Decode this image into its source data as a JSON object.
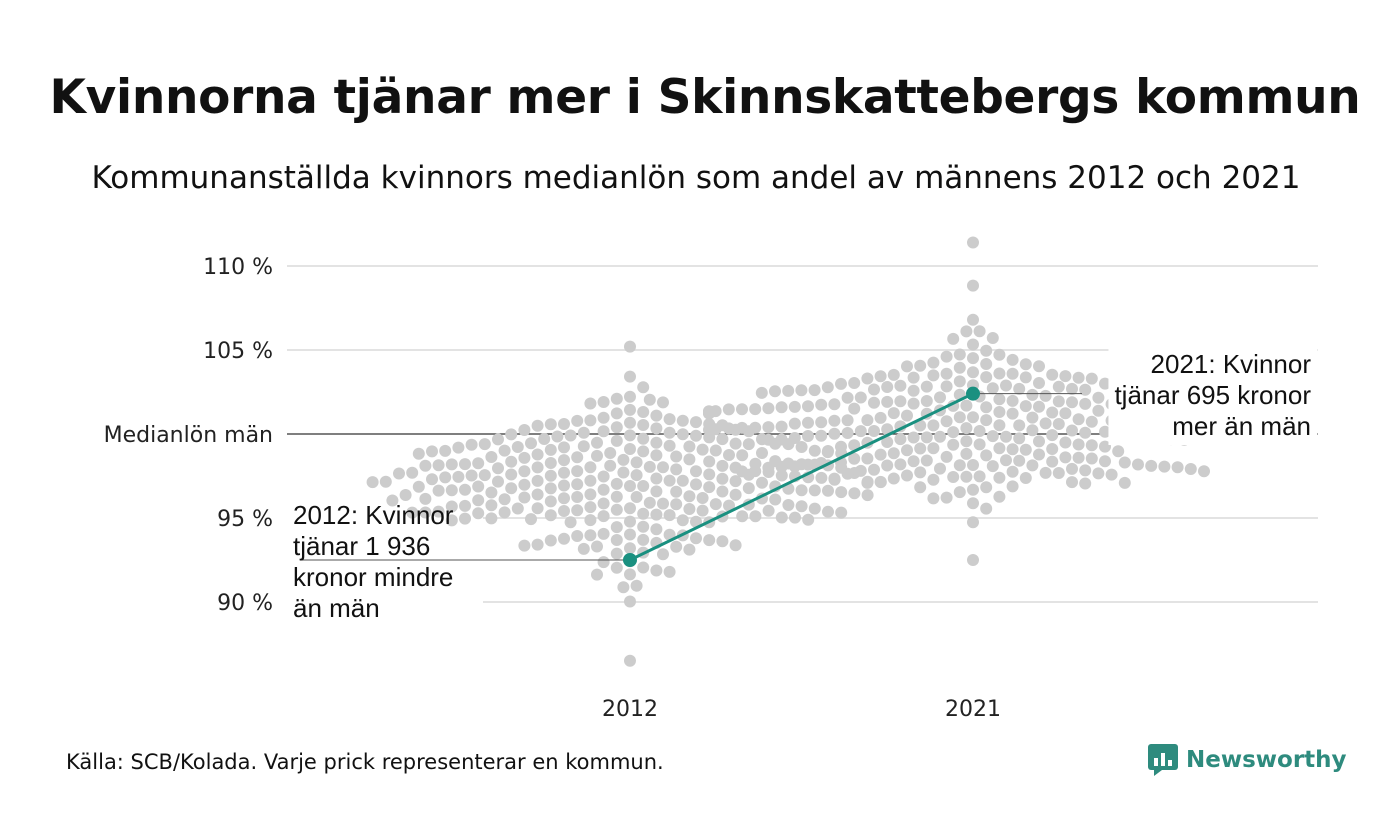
{
  "title": "Kvinnorna tjänar mer i Skinnskattebergs kommun",
  "subtitle": "Kommunanställda kvinnors medianlön som andel av männens 2012 och 2021",
  "source": "Källa: SCB/Kolada. Varje prick representerar en kommun.",
  "brand": {
    "name": "Newsworthy",
    "icon": "newsworthy-logo-icon",
    "color": "#2e8b7e"
  },
  "chart_data": {
    "type": "scatter",
    "title": "Kvinnorna tjänar mer i Skinnskattebergs kommun",
    "subtitle": "Kommunanställda kvinnors medianlön som andel av männens 2012 och 2021",
    "categories": [
      "2012",
      "2021"
    ],
    "y_axis": {
      "ticks": [
        {
          "value": 90,
          "label": "90 %"
        },
        {
          "value": 95,
          "label": "95 %"
        },
        {
          "value": 100,
          "label": "Medianlön män"
        },
        {
          "value": 105,
          "label": "105 %"
        },
        {
          "value": 110,
          "label": "110 %"
        }
      ],
      "ylim": [
        86,
        111.5
      ],
      "grid": true
    },
    "reference_value": 100,
    "distribution": [
      {
        "category": "2012",
        "median": 97,
        "spread": 2.6,
        "min": 86.5,
        "max": 105.2,
        "count": 290
      },
      {
        "category": "2021",
        "median": 100.8,
        "spread": 2.3,
        "min": 92.5,
        "max": 111.4,
        "count": 290
      }
    ],
    "highlight": {
      "name": "Skinnskatteberg",
      "color": "#1a9080",
      "points": [
        {
          "x": "2012",
          "y": 92.5
        },
        {
          "x": "2021",
          "y": 102.4
        }
      ]
    },
    "annotations": [
      {
        "category": "2012",
        "lines": [
          "2012: Kvinnor",
          "tjänar 1 936",
          "kronor mindre",
          "än män"
        ]
      },
      {
        "category": "2021",
        "lines": [
          "2021: Kvinnor",
          "tjänar 695 kronor",
          "mer än män"
        ]
      }
    ],
    "dot_color": "#cccccc",
    "gridline_color": "#e3e3e3",
    "reference_color": "#333333"
  }
}
